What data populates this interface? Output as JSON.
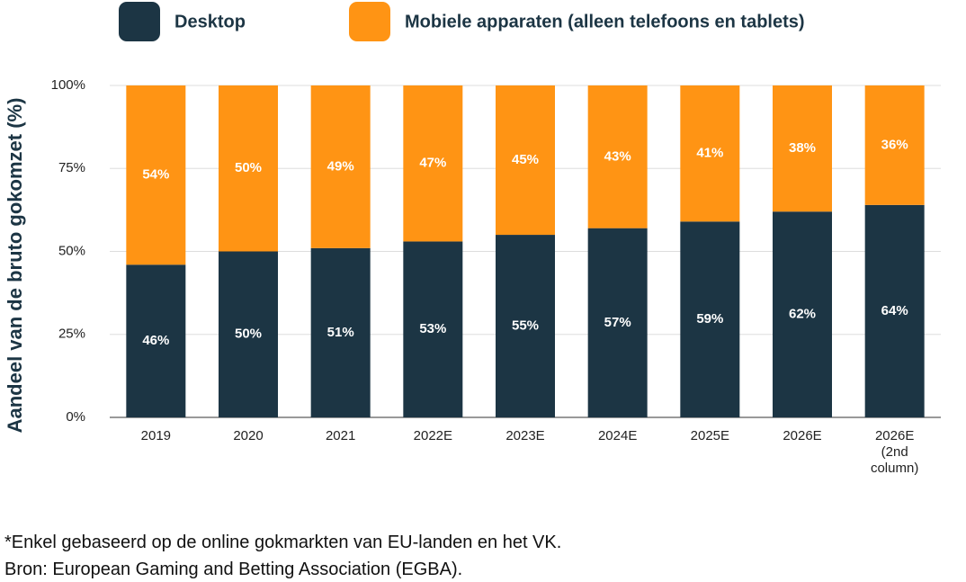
{
  "chart_data": {
    "type": "stacked-bar",
    "y_label": "Aandeel van de bruto gokomzet (%)",
    "categories": [
      "2019",
      "2020",
      "2021",
      "2022E",
      "2023E",
      "2024E",
      "2025E",
      "2026E",
      "2026E (2nd column)"
    ],
    "series": [
      {
        "name": "Desktop",
        "color": "#1c3544",
        "values": [
          46,
          50,
          51,
          53,
          55,
          57,
          59,
          62,
          64
        ],
        "value_labels": [
          "46%",
          "50%",
          "51%",
          "53%",
          "55%",
          "57%",
          "59%",
          "62%",
          "64%"
        ]
      },
      {
        "name": "Mobiele apparaten (alleen telefoons en tablets)",
        "color": "#ff9414",
        "values": [
          54,
          50,
          49,
          47,
          45,
          43,
          41,
          38,
          36
        ],
        "value_labels": [
          "54%",
          "50%",
          "49%",
          "47%",
          "45%",
          "43%",
          "41%",
          "38%",
          "36%"
        ]
      }
    ],
    "ylim": [
      0,
      100
    ],
    "yticks": [
      {
        "value": 0,
        "label": "0%"
      },
      {
        "value": 25,
        "label": "25%"
      },
      {
        "value": 50,
        "label": "50%"
      },
      {
        "value": 75,
        "label": "75%"
      },
      {
        "value": 100,
        "label": "100%"
      }
    ],
    "grid": true,
    "legend": "top",
    "footnotes": [
      "*Enkel gebaseerd op de online gokmarkten van EU-landen en het VK.",
      "Bron: European Gaming and Betting Association (EGBA)."
    ]
  }
}
